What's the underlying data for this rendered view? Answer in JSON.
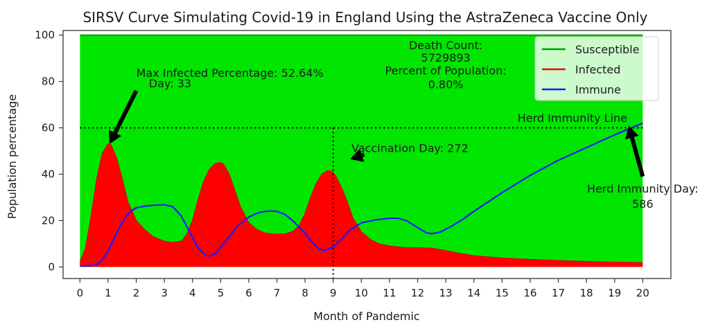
{
  "chart_data": {
    "type": "area",
    "title": "SIRSV Curve Simulating Covid-19 in England Using the AstraZeneca Vaccine Only",
    "xlabel": "Month of Pandemic",
    "ylabel": "Population percentage",
    "xlim": [
      -0.6,
      21
    ],
    "ylim": [
      -5,
      102
    ],
    "xticks": [
      "0",
      "1",
      "2",
      "3",
      "4",
      "5",
      "6",
      "7",
      "8",
      "9",
      "10",
      "11",
      "12",
      "13",
      "14",
      "15",
      "16",
      "17",
      "18",
      "19",
      "20"
    ],
    "yticks": [
      "0",
      "20",
      "40",
      "60",
      "80",
      "100"
    ],
    "legend_position": "top-right",
    "colors": {
      "susceptible": "#00e600",
      "infected": "#ff0000",
      "immune": "#1a1aff",
      "annotation": "#000000"
    },
    "series": [
      {
        "name": "Susceptible",
        "fill": "area",
        "x": [
          0,
          20
        ],
        "y": [
          100,
          100
        ]
      },
      {
        "name": "Infected",
        "fill": "area",
        "x": [
          0,
          0.2,
          0.4,
          0.6,
          0.8,
          1.0,
          1.1,
          1.3,
          1.5,
          1.7,
          2.0,
          2.3,
          2.6,
          3.0,
          3.3,
          3.6,
          3.8,
          4.0,
          4.2,
          4.4,
          4.6,
          4.8,
          5.0,
          5.1,
          5.3,
          5.5,
          5.7,
          6.0,
          6.3,
          6.6,
          7.0,
          7.3,
          7.6,
          7.8,
          8.0,
          8.2,
          8.4,
          8.6,
          8.8,
          8.95,
          9.1,
          9.3,
          9.5,
          9.7,
          10.0,
          10.3,
          10.6,
          11.0,
          11.5,
          12.0,
          12.5,
          13.0,
          13.5,
          14.0,
          15.0,
          16.0,
          17.0,
          18.0,
          19.0,
          20.0
        ],
        "y": [
          2,
          8,
          22,
          38,
          49,
          53,
          52.6,
          47,
          38,
          28,
          20,
          16,
          13,
          11,
          10.5,
          11,
          14,
          20,
          29,
          37,
          42,
          44.5,
          45,
          44.2,
          40,
          33,
          26,
          19,
          16,
          14.5,
          14,
          14.2,
          15.5,
          18,
          23,
          30,
          36,
          40,
          41.5,
          41.2,
          39,
          34,
          28,
          21,
          15,
          12,
          10,
          9,
          8.3,
          8.2,
          8.0,
          7.0,
          5.8,
          4.8,
          3.8,
          3.2,
          2.7,
          2.3,
          2.0,
          1.8
        ]
      },
      {
        "name": "Immune",
        "fill": "line",
        "x": [
          0,
          0.3,
          0.6,
          0.8,
          1.0,
          1.2,
          1.4,
          1.6,
          1.8,
          2.0,
          2.3,
          2.6,
          3.0,
          3.3,
          3.6,
          3.9,
          4.2,
          4.5,
          4.6,
          4.8,
          5.0,
          5.3,
          5.6,
          6.0,
          6.3,
          6.6,
          6.8,
          7.0,
          7.3,
          7.6,
          8.0,
          8.3,
          8.5,
          8.7,
          9.0,
          9.3,
          9.6,
          10.0,
          10.5,
          11.0,
          11.3,
          11.6,
          12.0,
          12.3,
          12.5,
          12.8,
          13.2,
          13.6,
          14.0,
          15.0,
          16.0,
          17.0,
          18.0,
          19.0,
          20.0
        ],
        "y": [
          0.5,
          0.4,
          1,
          3,
          7,
          12,
          17,
          21,
          24,
          25.5,
          26.2,
          26.6,
          26.8,
          26,
          22,
          15,
          8,
          4.8,
          4.7,
          5.5,
          8.5,
          13,
          17.5,
          21.5,
          23.2,
          24,
          24.1,
          24,
          22.5,
          19.5,
          14.5,
          10,
          7.8,
          7.2,
          8.5,
          12,
          16,
          19,
          20.3,
          21,
          21,
          20,
          17,
          14.8,
          14.3,
          15,
          17.5,
          20.5,
          24,
          32,
          39.5,
          46,
          51.5,
          57,
          62
        ]
      }
    ],
    "reference_lines": [
      {
        "name": "herd-immunity-line",
        "axis": "y",
        "value": 60,
        "label": "Herd Immunity Line"
      },
      {
        "name": "vaccination-day-line",
        "axis": "x",
        "value": 9.0
      }
    ],
    "annotations": {
      "max_infected": {
        "line1": "Max Infected Percentage: 52.64%",
        "line2": "Day: 33",
        "point": [
          1.05,
          53
        ],
        "arrow_from": [
          2.0,
          76
        ]
      },
      "vaccination": {
        "text": "Vaccination Day: 272",
        "point": [
          9.6,
          46.5
        ],
        "arrow_from": [
          10.1,
          48.5
        ]
      },
      "herd_immunity_day": {
        "line1": "Herd Immunity Day:",
        "line2": "586",
        "point": [
          19.5,
          61
        ],
        "arrow_from": [
          20.0,
          39
        ]
      },
      "death_count": {
        "line1": "Death Count:",
        "line2": "5729893",
        "line3": "Percent of Population:",
        "line4": "0.80%"
      }
    },
    "legend": [
      "Susceptible",
      "Infected",
      "Immune"
    ]
  }
}
